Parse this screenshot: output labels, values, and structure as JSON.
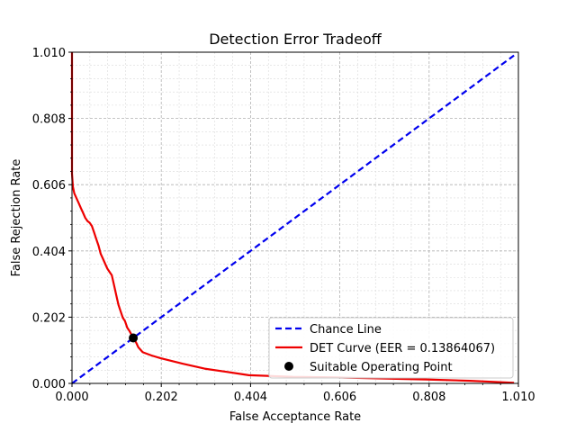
{
  "chart_data": {
    "type": "line",
    "title": "Detection Error Tradeoff",
    "xlabel": "False Acceptance Rate",
    "ylabel": "False Rejection Rate",
    "xlim": [
      0.0,
      1.01
    ],
    "ylim": [
      0.0,
      1.01
    ],
    "xticks": [
      "0.000",
      "0.202",
      "0.404",
      "0.606",
      "0.808",
      "1.010"
    ],
    "yticks": [
      "0.000",
      "0.202",
      "0.404",
      "0.606",
      "0.808",
      "1.010"
    ],
    "grid": true,
    "legend_position": "lower-right",
    "series": [
      {
        "name": "Chance Line",
        "color": "#0000ee",
        "style": "dashed",
        "points": [
          [
            0.0,
            0.0
          ],
          [
            1.0,
            1.0
          ]
        ]
      },
      {
        "name": "DET Curve (EER = 0.13864067)",
        "color": "#ee0000",
        "style": "solid",
        "points": [
          [
            0.0,
            1.01
          ],
          [
            0.0,
            0.8
          ],
          [
            0.0,
            0.64
          ],
          [
            0.002,
            0.6
          ],
          [
            0.005,
            0.58
          ],
          [
            0.01,
            0.565
          ],
          [
            0.015,
            0.55
          ],
          [
            0.02,
            0.535
          ],
          [
            0.025,
            0.52
          ],
          [
            0.03,
            0.505
          ],
          [
            0.035,
            0.495
          ],
          [
            0.04,
            0.49
          ],
          [
            0.045,
            0.48
          ],
          [
            0.05,
            0.46
          ],
          [
            0.055,
            0.44
          ],
          [
            0.06,
            0.42
          ],
          [
            0.065,
            0.395
          ],
          [
            0.07,
            0.38
          ],
          [
            0.075,
            0.365
          ],
          [
            0.08,
            0.35
          ],
          [
            0.085,
            0.34
          ],
          [
            0.09,
            0.33
          ],
          [
            0.095,
            0.3
          ],
          [
            0.1,
            0.27
          ],
          [
            0.105,
            0.24
          ],
          [
            0.11,
            0.22
          ],
          [
            0.115,
            0.2
          ],
          [
            0.12,
            0.19
          ],
          [
            0.125,
            0.17
          ],
          [
            0.13,
            0.16
          ],
          [
            0.1386,
            0.1386
          ],
          [
            0.145,
            0.125
          ],
          [
            0.15,
            0.11
          ],
          [
            0.16,
            0.095
          ],
          [
            0.18,
            0.085
          ],
          [
            0.2,
            0.077
          ],
          [
            0.25,
            0.06
          ],
          [
            0.3,
            0.045
          ],
          [
            0.35,
            0.035
          ],
          [
            0.4,
            0.025
          ],
          [
            0.5,
            0.02
          ],
          [
            0.6,
            0.018
          ],
          [
            0.7,
            0.015
          ],
          [
            0.8,
            0.012
          ],
          [
            0.9,
            0.008
          ],
          [
            0.95,
            0.005
          ],
          [
            1.0,
            0.002
          ]
        ]
      }
    ],
    "points": [
      {
        "name": "Suitable Operating Point",
        "color": "#000000",
        "x": 0.1386,
        "y": 0.1386
      }
    ]
  }
}
